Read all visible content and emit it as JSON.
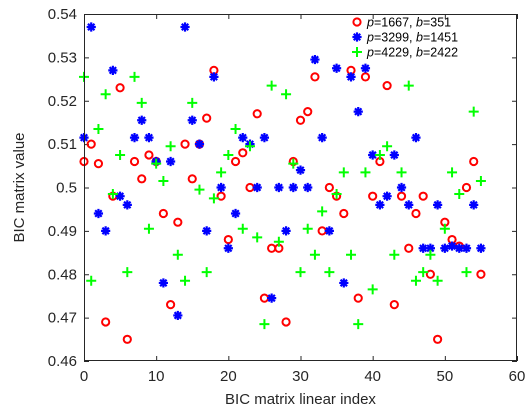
{
  "chart_data": {
    "type": "scatter",
    "xlabel": "BIC matrix linear index",
    "ylabel": "BIC matrix value",
    "xlim": [
      0,
      60
    ],
    "ylim": [
      0.46,
      0.54
    ],
    "xticks": [
      "0",
      "10",
      "20",
      "30",
      "40",
      "50",
      "60"
    ],
    "yticks": [
      "0.46",
      "0.47",
      "0.48",
      "0.49",
      "0.5",
      "0.51",
      "0.52",
      "0.53",
      "0.54"
    ],
    "grid": false,
    "box": true,
    "legend_position": "top-right",
    "series": [
      {
        "name": "p=1667, b=351",
        "legend": {
          "p": "p",
          "p_val": "=1667, ",
          "b": "b",
          "b_val": "=351"
        },
        "marker": "circle",
        "color": "#ff0000",
        "x": [
          0,
          1,
          2,
          3,
          4,
          5,
          6,
          7,
          8,
          9,
          10,
          11,
          12,
          13,
          14,
          15,
          16,
          17,
          18,
          19,
          20,
          21,
          22,
          23,
          24,
          25,
          26,
          27,
          28,
          29,
          30,
          31,
          32,
          33,
          34,
          35,
          36,
          37,
          38,
          39,
          40,
          41,
          42,
          43,
          44,
          45,
          46,
          47,
          48,
          49,
          50,
          51,
          52,
          53,
          54,
          55
        ],
        "y": [
          0.506,
          0.51,
          0.5055,
          0.469,
          0.498,
          0.523,
          0.465,
          0.506,
          0.502,
          0.5075,
          0.506,
          0.494,
          0.473,
          0.492,
          0.51,
          0.502,
          0.51,
          0.516,
          0.527,
          0.498,
          0.488,
          0.506,
          0.508,
          0.5,
          0.517,
          0.4745,
          0.486,
          0.486,
          0.469,
          0.506,
          0.5155,
          0.5175,
          0.5255,
          0.49,
          0.5,
          0.498,
          0.494,
          0.527,
          0.4745,
          0.5255,
          0.498,
          0.506,
          0.5235,
          0.473,
          0.498,
          0.486,
          0.494,
          0.498,
          0.48,
          0.465,
          0.492,
          0.488,
          0.4865,
          0.5,
          0.506,
          0.48
        ]
      },
      {
        "name": "p=3299, b=1451",
        "legend": {
          "p": "p",
          "p_val": "=3299, ",
          "b": "b",
          "b_val": "=1451"
        },
        "marker": "asterisk",
        "color": "#0000ff",
        "x": [
          0,
          1,
          2,
          3,
          4,
          5,
          6,
          7,
          8,
          9,
          10,
          11,
          12,
          13,
          14,
          15,
          16,
          17,
          18,
          19,
          20,
          21,
          22,
          23,
          24,
          25,
          26,
          27,
          28,
          29,
          30,
          31,
          32,
          33,
          34,
          35,
          36,
          37,
          38,
          39,
          40,
          41,
          42,
          43,
          44,
          45,
          46,
          47,
          48,
          49,
          50,
          51,
          52,
          53,
          54,
          55
        ],
        "y": [
          0.5115,
          0.537,
          0.494,
          0.49,
          0.527,
          0.498,
          0.496,
          0.5115,
          0.5155,
          0.5115,
          0.506,
          0.478,
          0.506,
          0.4705,
          0.537,
          0.5155,
          0.51,
          0.49,
          0.5255,
          0.5,
          0.486,
          0.494,
          0.5115,
          0.51,
          0.5,
          0.5115,
          0.4745,
          0.5,
          0.49,
          0.5,
          0.504,
          0.5,
          0.5295,
          0.5115,
          0.49,
          0.5275,
          0.478,
          0.5255,
          0.5175,
          0.5275,
          0.5075,
          0.496,
          0.498,
          0.5075,
          0.5,
          0.496,
          0.5115,
          0.486,
          0.486,
          0.496,
          0.486,
          0.4865,
          0.486,
          0.486,
          0.496,
          0.486
        ]
      },
      {
        "name": "p=4229, b=2422",
        "legend": {
          "p": "p",
          "p_val": "=4229, ",
          "b": "b",
          "b_val": "=2422"
        },
        "marker": "plus",
        "color": "#00ff00",
        "x": [
          0,
          1,
          2,
          3,
          4,
          5,
          6,
          7,
          8,
          9,
          10,
          11,
          12,
          13,
          14,
          15,
          16,
          17,
          18,
          19,
          20,
          21,
          22,
          23,
          24,
          25,
          26,
          27,
          28,
          29,
          30,
          31,
          32,
          33,
          34,
          35,
          36,
          37,
          38,
          39,
          40,
          41,
          42,
          43,
          44,
          45,
          46,
          47,
          48,
          49,
          50,
          51,
          52,
          53,
          54,
          55
        ],
        "y": [
          0.5255,
          0.4785,
          0.5135,
          0.5215,
          0.4985,
          0.5075,
          0.4805,
          0.5255,
          0.5195,
          0.4905,
          0.5055,
          0.5015,
          0.5095,
          0.4845,
          0.4785,
          0.5195,
          0.4995,
          0.4805,
          0.4975,
          0.5035,
          0.5075,
          0.5135,
          0.4905,
          0.5095,
          0.4885,
          0.4685,
          0.5235,
          0.4875,
          0.5215,
          0.5055,
          0.4805,
          0.4905,
          0.4845,
          0.4945,
          0.4805,
          0.4985,
          0.5035,
          0.4845,
          0.4685,
          0.5035,
          0.4765,
          0.5075,
          0.5095,
          0.4845,
          0.5035,
          0.5235,
          0.4785,
          0.4805,
          0.4845,
          0.4785,
          0.4905,
          0.5035,
          0.4985,
          0.4805,
          0.5175,
          0.5015
        ]
      }
    ]
  }
}
